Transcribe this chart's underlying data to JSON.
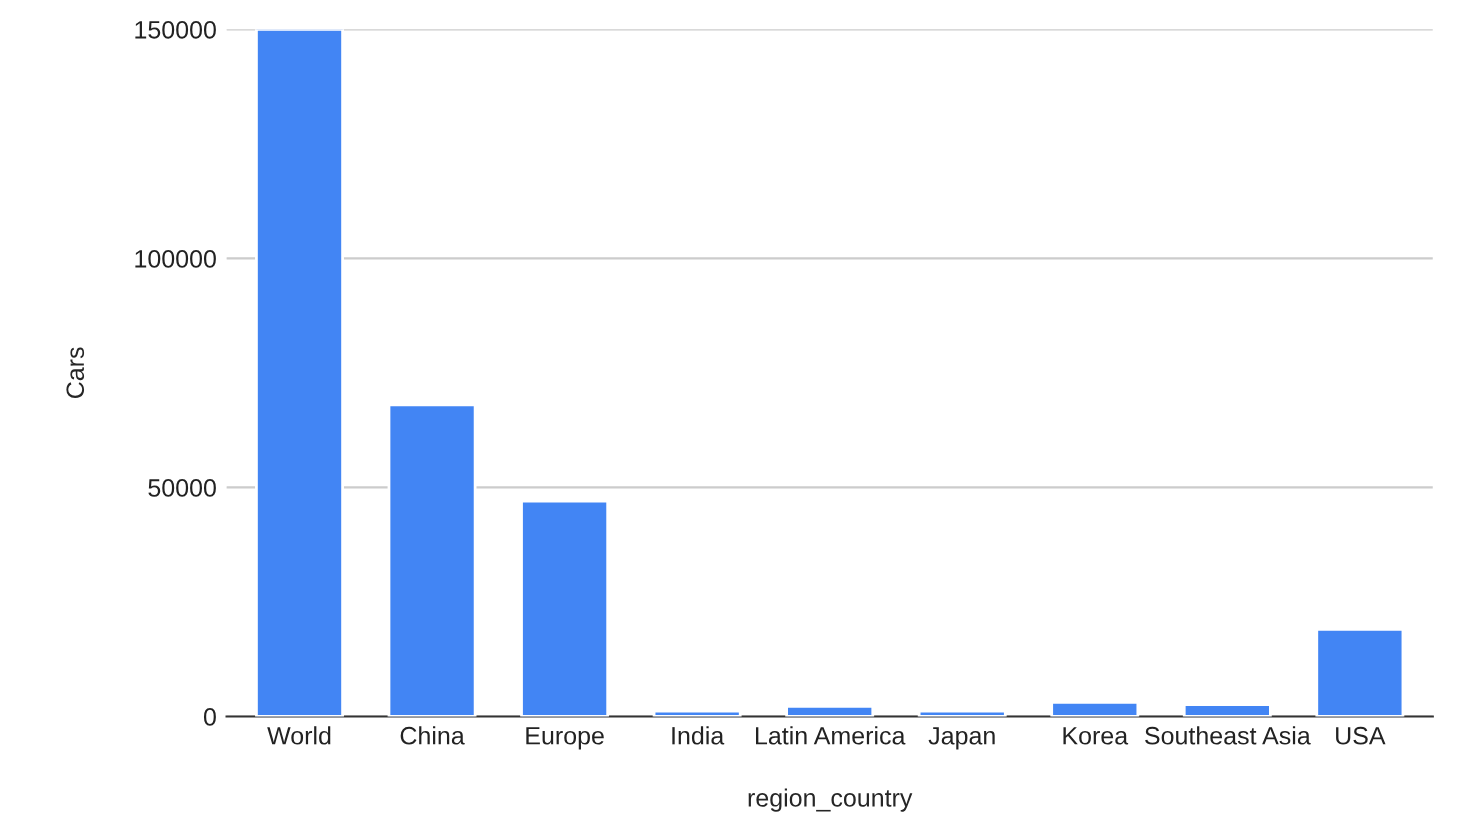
{
  "chart_data": {
    "type": "bar",
    "xlabel": "region_country",
    "ylabel": "Cars",
    "categories": [
      "World",
      "China",
      "Europe",
      "India",
      "Latin America",
      "Japan",
      "Korea",
      "Southeast Asia",
      "USA"
    ],
    "values": [
      150000,
      68000,
      47000,
      1200,
      2200,
      1200,
      3100,
      2600,
      19000
    ],
    "color": "#4285f4",
    "ylim": [
      0,
      150000
    ],
    "yticks": [
      0,
      50000,
      100000,
      150000
    ],
    "grid": "y",
    "legend": false
  }
}
